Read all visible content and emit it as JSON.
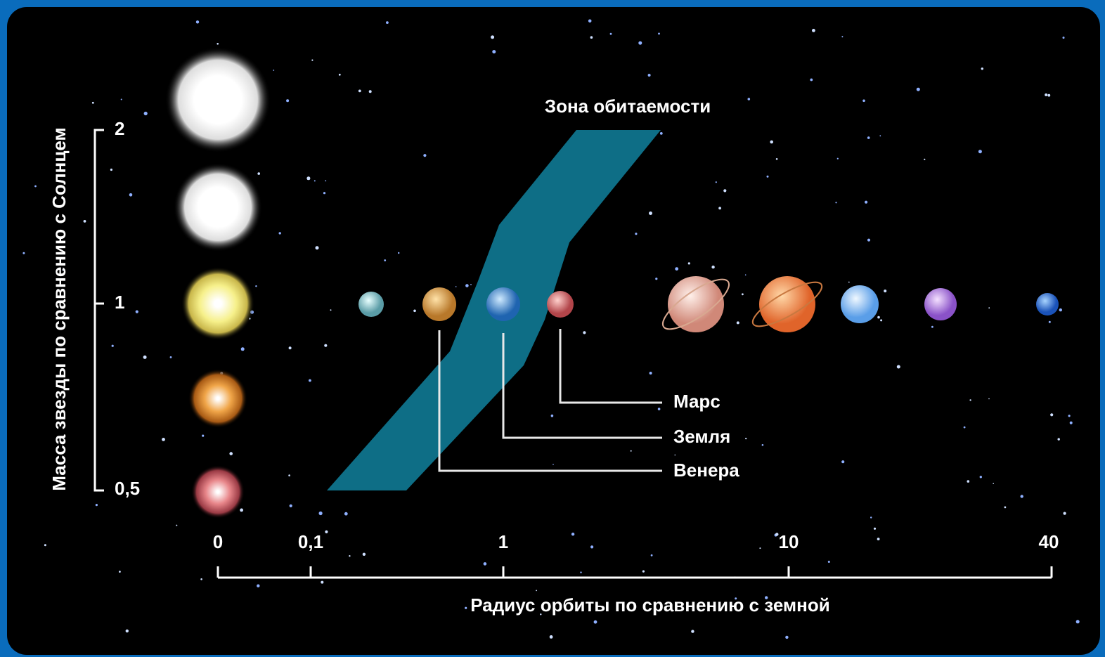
{
  "zone_label": "Зона обитаемости",
  "y_axis": {
    "label": "Масса звезды по сравнению с Солнцем",
    "ticks": [
      "2",
      "1",
      "0,5"
    ]
  },
  "x_axis": {
    "label": "Радиус орбиты по сравнению с земной",
    "ticks": [
      "0",
      "0,1",
      "1",
      "10",
      "40"
    ]
  },
  "planet_labels": [
    "Марс",
    "Земля",
    "Венера"
  ]
}
